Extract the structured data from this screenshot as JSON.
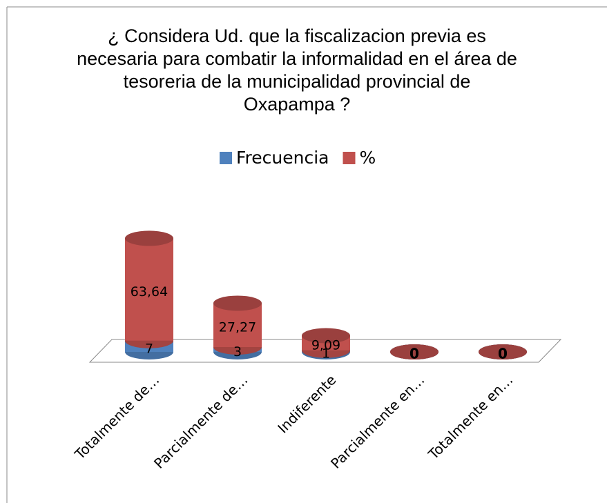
{
  "chart_data": {
    "type": "bar3d",
    "title": "¿ Considera Ud. que la fiscalizacion previa es necesaria para combatir la informalidad en el área de tesoreria de la municipalidad provincial de Oxapampa ?",
    "categories": [
      "Totalmente de…",
      "Parcialmente de…",
      "Indiferente",
      "Parcialmente en…",
      "Totalmente en…"
    ],
    "stacked": true,
    "legend": "top",
    "series": [
      {
        "name": "Frecuencia",
        "color": "#4f81bd",
        "values": [
          7,
          3,
          1,
          0,
          0
        ]
      },
      {
        "name": "%",
        "color": "#c0504d",
        "values": [
          63.64,
          27.27,
          9.09,
          0,
          0
        ],
        "value_labels": [
          "63,64",
          "27,27",
          "9,09",
          "0",
          "0"
        ]
      }
    ]
  }
}
